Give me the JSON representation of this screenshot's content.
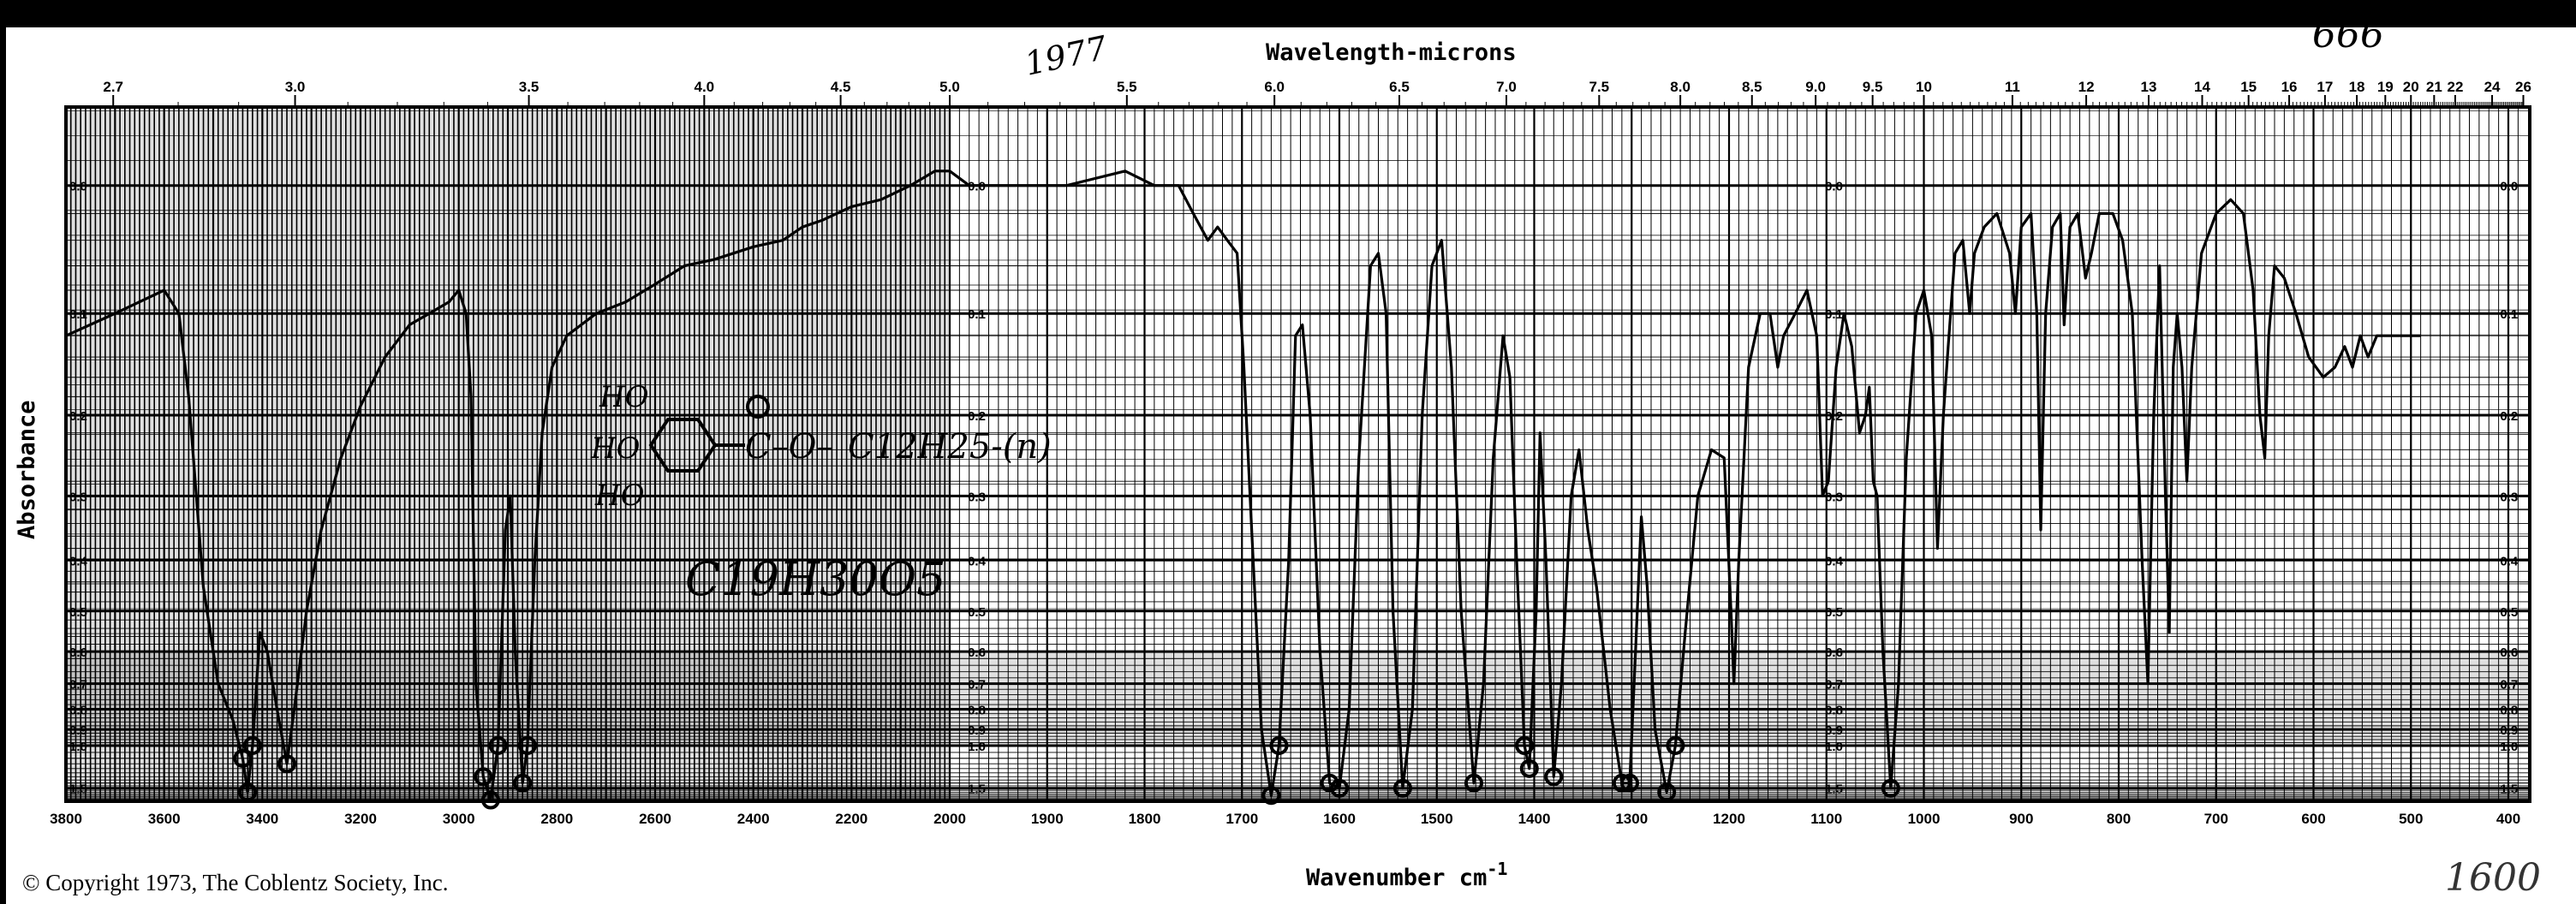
{
  "chart_data": {
    "type": "line",
    "title": "",
    "top_axis_label": "Wavelength-microns",
    "xlabel": "Wavenumber cm",
    "xlabel_superscript": "-1",
    "ylabel": "Absorbance",
    "xlim": [
      3800,
      400
    ],
    "ylim": [
      0.0,
      1.5
    ],
    "grid": true,
    "colors": {
      "trace": "#000000",
      "grid": "#000000",
      "background": "#ffffff"
    },
    "x_ticks": [
      3800,
      3600,
      3400,
      3200,
      3000,
      2800,
      2600,
      2400,
      2200,
      2000,
      1900,
      1800,
      1700,
      1600,
      1500,
      1400,
      1300,
      1200,
      1100,
      1000,
      900,
      800,
      700,
      600,
      500,
      400
    ],
    "x_tick_labels": [
      "3800",
      "3600",
      "3400",
      "3200",
      "3000",
      "2800",
      "2600",
      "2400",
      "2200",
      "2000",
      "1900",
      "1800",
      "1700",
      "1600",
      "1500",
      "1400",
      "1300",
      "1200",
      "1100",
      "1000",
      "900",
      "800",
      "700",
      "600",
      "500",
      "400"
    ],
    "micron_ticks": [
      2.7,
      3.0,
      3.5,
      4.0,
      4.5,
      5.0,
      5.5,
      6.0,
      6.5,
      7.0,
      7.5,
      8.0,
      8.5,
      9.0,
      9.5,
      10,
      11,
      12,
      13,
      14,
      15,
      16,
      17,
      18,
      19,
      20,
      21,
      22,
      24,
      26
    ],
    "micron_tick_labels": [
      "2.7",
      "3.0",
      "3.5",
      "4.0",
      "4.5",
      "5.0",
      "5.5",
      "6.0",
      "6.5",
      "7.0",
      "7.5",
      "8.0",
      "8.5",
      "9.0",
      "9.5",
      "10",
      "11",
      "12",
      "13",
      "14",
      "15",
      "16",
      "17",
      "18",
      "19",
      "20",
      "21",
      "22",
      "24",
      "26"
    ],
    "y_ticks": [
      0.0,
      0.1,
      0.2,
      0.3,
      0.4,
      0.5,
      0.6,
      0.7,
      0.8,
      0.9,
      1.0,
      1.5
    ],
    "y_tick_labels": [
      "0.0",
      "0.1",
      "0.2",
      "0.3",
      "0.4",
      "0.5",
      "0.6",
      "0.7",
      "0.8",
      "0.9",
      "1.0",
      "1.5"
    ],
    "series": [
      {
        "points": [
          [
            3800,
            0.12
          ],
          [
            3700,
            0.1
          ],
          [
            3600,
            0.08
          ],
          [
            3570,
            0.1
          ],
          [
            3550,
            0.18
          ],
          [
            3520,
            0.45
          ],
          [
            3490,
            0.7
          ],
          [
            3460,
            0.85
          ],
          [
            3440,
            1.1
          ],
          [
            3430,
            1.6
          ],
          [
            3420,
            1.0
          ],
          [
            3405,
            0.55
          ],
          [
            3390,
            0.6
          ],
          [
            3370,
            0.8
          ],
          [
            3350,
            1.15
          ],
          [
            3335,
            0.8
          ],
          [
            3310,
            0.5
          ],
          [
            3280,
            0.35
          ],
          [
            3240,
            0.25
          ],
          [
            3200,
            0.19
          ],
          [
            3150,
            0.14
          ],
          [
            3100,
            0.11
          ],
          [
            3060,
            0.1
          ],
          [
            3020,
            0.09
          ],
          [
            3000,
            0.08
          ],
          [
            2985,
            0.1
          ],
          [
            2975,
            0.18
          ],
          [
            2965,
            0.7
          ],
          [
            2950,
            1.3
          ],
          [
            2935,
            1.9
          ],
          [
            2920,
            1.0
          ],
          [
            2905,
            0.35
          ],
          [
            2895,
            0.3
          ],
          [
            2885,
            0.6
          ],
          [
            2870,
            1.4
          ],
          [
            2860,
            1.0
          ],
          [
            2845,
            0.4
          ],
          [
            2830,
            0.22
          ],
          [
            2810,
            0.15
          ],
          [
            2780,
            0.12
          ],
          [
            2720,
            0.1
          ],
          [
            2660,
            0.09
          ],
          [
            2600,
            0.075
          ],
          [
            2540,
            0.06
          ],
          [
            2480,
            0.055
          ],
          [
            2400,
            0.045
          ],
          [
            2340,
            0.04
          ],
          [
            2300,
            0.03
          ],
          [
            2260,
            0.025
          ],
          [
            2200,
            0.015
          ],
          [
            2140,
            0.01
          ],
          [
            2080,
            0.0
          ],
          [
            2030,
            -0.01
          ],
          [
            2000,
            -0.01
          ],
          [
            1980,
            0.0
          ],
          [
            1940,
            0.0
          ],
          [
            1880,
            0.0
          ],
          [
            1820,
            -0.01
          ],
          [
            1790,
            0.0
          ],
          [
            1765,
            0.0
          ],
          [
            1750,
            0.02
          ],
          [
            1735,
            0.04
          ],
          [
            1725,
            0.03
          ],
          [
            1715,
            0.04
          ],
          [
            1705,
            0.05
          ],
          [
            1698,
            0.15
          ],
          [
            1690,
            0.35
          ],
          [
            1680,
            0.9
          ],
          [
            1670,
            1.7
          ],
          [
            1662,
            1.0
          ],
          [
            1652,
            0.4
          ],
          [
            1645,
            0.12
          ],
          [
            1638,
            0.11
          ],
          [
            1630,
            0.2
          ],
          [
            1620,
            0.6
          ],
          [
            1610,
            1.4
          ],
          [
            1600,
            1.5
          ],
          [
            1590,
            0.8
          ],
          [
            1580,
            0.25
          ],
          [
            1568,
            0.06
          ],
          [
            1560,
            0.05
          ],
          [
            1552,
            0.1
          ],
          [
            1545,
            0.5
          ],
          [
            1535,
            1.5
          ],
          [
            1525,
            0.8
          ],
          [
            1515,
            0.2
          ],
          [
            1505,
            0.06
          ],
          [
            1495,
            0.04
          ],
          [
            1485,
            0.15
          ],
          [
            1475,
            0.5
          ],
          [
            1462,
            1.4
          ],
          [
            1452,
            0.7
          ],
          [
            1442,
            0.25
          ],
          [
            1432,
            0.12
          ],
          [
            1425,
            0.16
          ],
          [
            1418,
            0.4
          ],
          [
            1410,
            1.0
          ],
          [
            1405,
            1.2
          ],
          [
            1398,
            0.5
          ],
          [
            1394,
            0.22
          ],
          [
            1388,
            0.4
          ],
          [
            1380,
            1.3
          ],
          [
            1372,
            0.7
          ],
          [
            1362,
            0.3
          ],
          [
            1354,
            0.24
          ],
          [
            1345,
            0.35
          ],
          [
            1336,
            0.45
          ],
          [
            1322,
            0.8
          ],
          [
            1310,
            1.4
          ],
          [
            1302,
            1.4
          ],
          [
            1296,
            0.6
          ],
          [
            1290,
            0.33
          ],
          [
            1284,
            0.45
          ],
          [
            1276,
            0.9
          ],
          [
            1264,
            1.6
          ],
          [
            1255,
            1.0
          ],
          [
            1245,
            0.55
          ],
          [
            1232,
            0.3
          ],
          [
            1218,
            0.24
          ],
          [
            1205,
            0.25
          ],
          [
            1198,
            0.5
          ],
          [
            1195,
            0.7
          ],
          [
            1190,
            0.4
          ],
          [
            1180,
            0.15
          ],
          [
            1168,
            0.1
          ],
          [
            1158,
            0.1
          ],
          [
            1150,
            0.15
          ],
          [
            1144,
            0.12
          ],
          [
            1132,
            0.1
          ],
          [
            1120,
            0.08
          ],
          [
            1110,
            0.12
          ],
          [
            1104,
            0.3
          ],
          [
            1098,
            0.28
          ],
          [
            1090,
            0.15
          ],
          [
            1082,
            0.1
          ],
          [
            1074,
            0.13
          ],
          [
            1066,
            0.22
          ],
          [
            1060,
            0.2
          ],
          [
            1056,
            0.17
          ],
          [
            1052,
            0.28
          ],
          [
            1048,
            0.3
          ],
          [
            1042,
            0.6
          ],
          [
            1034,
            1.5
          ],
          [
            1026,
            0.7
          ],
          [
            1018,
            0.25
          ],
          [
            1008,
            0.1
          ],
          [
            1000,
            0.08
          ],
          [
            992,
            0.12
          ],
          [
            986,
            0.38
          ],
          [
            980,
            0.2
          ],
          [
            975,
            0.13
          ],
          [
            968,
            0.05
          ],
          [
            960,
            0.04
          ],
          [
            953,
            0.1
          ],
          [
            948,
            0.05
          ],
          [
            938,
            0.03
          ],
          [
            925,
            0.02
          ],
          [
            912,
            0.05
          ],
          [
            906,
            0.1
          ],
          [
            900,
            0.03
          ],
          [
            890,
            0.02
          ],
          [
            884,
            0.1
          ],
          [
            880,
            0.35
          ],
          [
            875,
            0.1
          ],
          [
            868,
            0.03
          ],
          [
            860,
            0.02
          ],
          [
            856,
            0.11
          ],
          [
            850,
            0.03
          ],
          [
            842,
            0.02
          ],
          [
            834,
            0.07
          ],
          [
            828,
            0.05
          ],
          [
            820,
            0.02
          ],
          [
            806,
            0.02
          ],
          [
            796,
            0.04
          ],
          [
            786,
            0.1
          ],
          [
            776,
            0.4
          ],
          [
            770,
            0.7
          ],
          [
            764,
            0.2
          ],
          [
            758,
            0.06
          ],
          [
            752,
            0.3
          ],
          [
            748,
            0.55
          ],
          [
            744,
            0.15
          ],
          [
            740,
            0.1
          ],
          [
            735,
            0.15
          ],
          [
            730,
            0.28
          ],
          [
            725,
            0.15
          ],
          [
            715,
            0.05
          ],
          [
            700,
            0.02
          ],
          [
            685,
            0.01
          ],
          [
            672,
            0.02
          ],
          [
            662,
            0.08
          ],
          [
            655,
            0.2
          ],
          [
            650,
            0.25
          ],
          [
            646,
            0.12
          ],
          [
            640,
            0.06
          ],
          [
            630,
            0.07
          ],
          [
            618,
            0.1
          ],
          [
            605,
            0.14
          ],
          [
            590,
            0.16
          ],
          [
            578,
            0.15
          ],
          [
            568,
            0.13
          ],
          [
            560,
            0.15
          ],
          [
            552,
            0.12
          ],
          [
            544,
            0.14
          ],
          [
            535,
            0.12
          ],
          [
            525,
            0.12
          ],
          [
            510,
            0.12
          ],
          [
            490,
            0.12
          ]
        ]
      }
    ]
  },
  "page": {
    "copyright": "© Copyright 1973, The Coblentz Society, Inc."
  },
  "annotations": {
    "top_note": "1977",
    "top_right_note": "666",
    "bottom_right_note": "1600",
    "structure_substituents": [
      "HO",
      "HO",
      "HO"
    ],
    "structure_chain": "C12H25-(n)",
    "formula": "C19H30O5"
  }
}
